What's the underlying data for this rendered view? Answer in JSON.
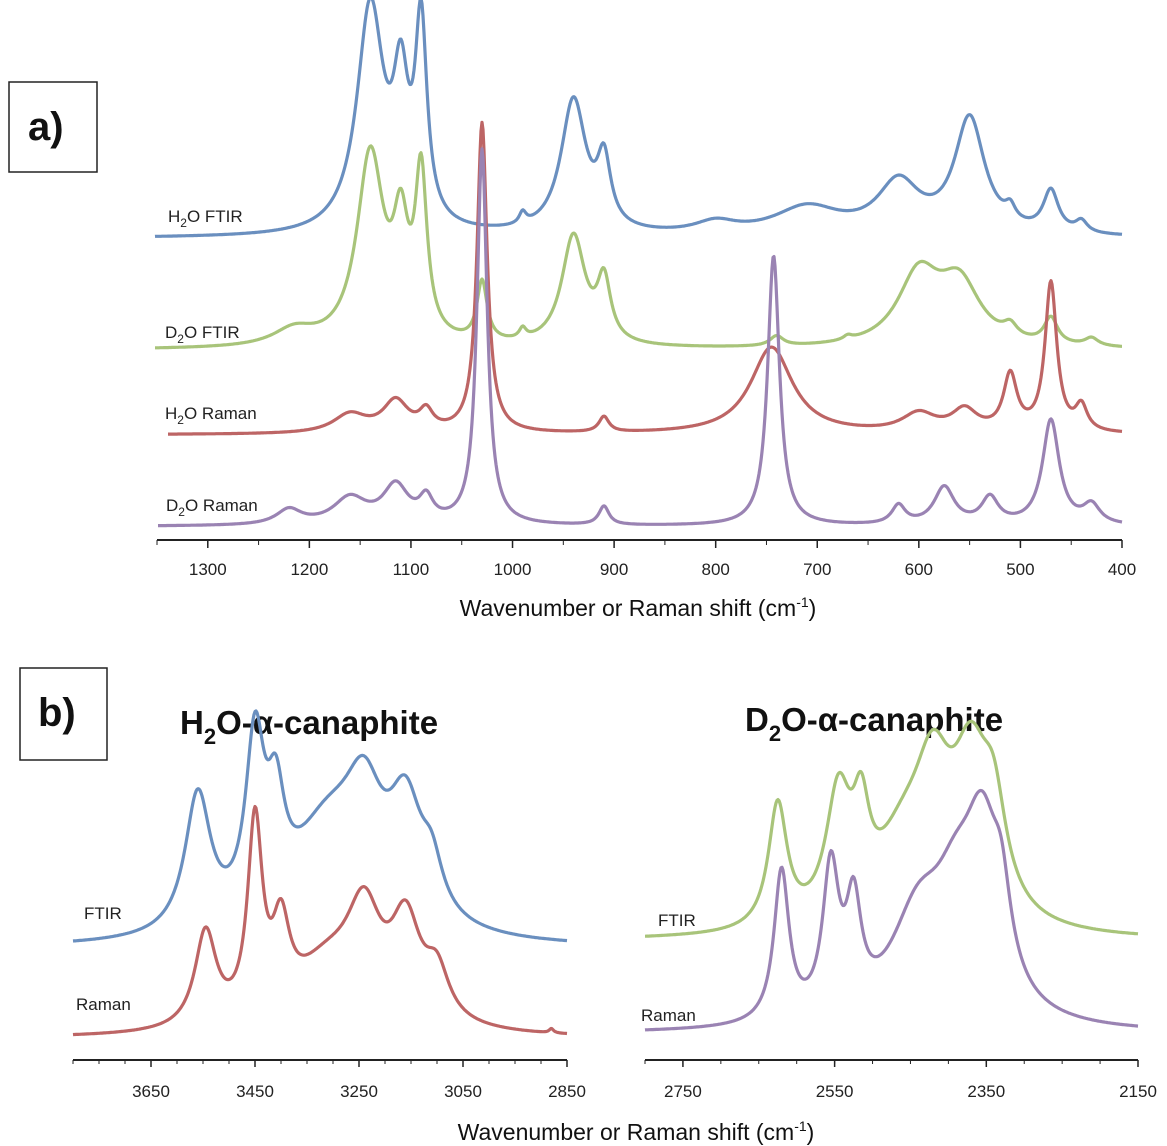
{
  "colors": {
    "blue": "#6a8fbf",
    "green": "#a8c47a",
    "red": "#bd6565",
    "purple": "#9a83b3"
  },
  "panel_a": {
    "tag": "a)",
    "axis_title": "Wavenumber or Raman shift (cm",
    "axis_unit_sup": "-1",
    "axis_title_close": ")",
    "trace_labels": {
      "h2o_ftir": {
        "pre": "H",
        "sub": "2",
        "post": "O FTIR"
      },
      "d2o_ftir": {
        "pre": "D",
        "sub": "2",
        "post": "O FTIR"
      },
      "h2o_raman": {
        "pre": "H",
        "sub": "2",
        "post": "O Raman"
      },
      "d2o_raman": {
        "pre": "D",
        "sub": "2",
        "post": "O Raman"
      }
    }
  },
  "panel_b": {
    "tag": "b)",
    "axis_title": "Wavenumber or Raman shift (cm",
    "axis_unit_sup": "-1",
    "axis_title_close": ")",
    "left_title": {
      "pre": "H",
      "sub": "2",
      "post": "O-α-canaphite"
    },
    "right_title": {
      "pre": "D",
      "sub": "2",
      "post": "O-α-canaphite"
    },
    "left_labels": {
      "ftir": "FTIR",
      "raman": "Raman"
    },
    "right_labels": {
      "ftir": "FTIR",
      "raman": "Raman"
    }
  },
  "chart_data": [
    {
      "type": "line",
      "panel": "a",
      "xlabel": "Wavenumber or Raman shift (cm-1)",
      "xlim": [
        1350,
        400
      ],
      "x_reversed": true,
      "xticks": [
        1300,
        1200,
        1100,
        1000,
        900,
        800,
        700,
        600,
        500,
        400
      ],
      "y_axis_shown": false,
      "series": [
        {
          "name": "H2O FTIR",
          "color": "blue",
          "baseline": 0.02,
          "peaks": [
            [
              1140,
              0.98,
              16
            ],
            [
              1110,
              0.55,
              9
            ],
            [
              1090,
              0.85,
              7
            ],
            [
              940,
              0.58,
              15
            ],
            [
              910,
              0.28,
              8
            ],
            [
              990,
              0.05,
              4
            ],
            [
              800,
              0.05,
              25
            ],
            [
              710,
              0.12,
              40
            ],
            [
              620,
              0.22,
              25
            ],
            [
              550,
              0.5,
              18
            ],
            [
              510,
              0.06,
              6
            ],
            [
              470,
              0.18,
              9
            ],
            [
              440,
              0.05,
              7
            ]
          ]
        },
        {
          "name": "D2O FTIR",
          "color": "green",
          "baseline": 0.02,
          "peaks": [
            [
              1140,
              0.95,
              16
            ],
            [
              1110,
              0.5,
              9
            ],
            [
              1090,
              0.8,
              7
            ],
            [
              1215,
              0.08,
              25
            ],
            [
              1030,
              0.3,
              6
            ],
            [
              990,
              0.05,
              4
            ],
            [
              940,
              0.55,
              14
            ],
            [
              910,
              0.3,
              8
            ],
            [
              740,
              0.05,
              8
            ],
            [
              670,
              0.02,
              5
            ],
            [
              600,
              0.35,
              25
            ],
            [
              560,
              0.3,
              25
            ],
            [
              510,
              0.06,
              8
            ],
            [
              470,
              0.13,
              8
            ],
            [
              430,
              0.04,
              8
            ]
          ]
        },
        {
          "name": "H2O Raman",
          "color": "red",
          "baseline": 0.02,
          "peaks": [
            [
              1030,
              1.0,
              6
            ],
            [
              1160,
              0.06,
              20
            ],
            [
              1115,
              0.1,
              15
            ],
            [
              1085,
              0.06,
              8
            ],
            [
              910,
              0.05,
              6
            ],
            [
              745,
              0.28,
              25
            ],
            [
              600,
              0.06,
              20
            ],
            [
              555,
              0.07,
              15
            ],
            [
              510,
              0.18,
              8
            ],
            [
              470,
              0.48,
              7
            ],
            [
              440,
              0.08,
              7
            ]
          ]
        },
        {
          "name": "D2O Raman",
          "color": "purple",
          "baseline": 0.02,
          "peaks": [
            [
              1030,
              1.0,
              6
            ],
            [
              1220,
              0.04,
              15
            ],
            [
              1160,
              0.07,
              20
            ],
            [
              1115,
              0.1,
              15
            ],
            [
              1085,
              0.06,
              8
            ],
            [
              910,
              0.05,
              6
            ],
            [
              743,
              0.72,
              7
            ],
            [
              620,
              0.05,
              8
            ],
            [
              575,
              0.1,
              12
            ],
            [
              530,
              0.07,
              10
            ],
            [
              470,
              0.28,
              10
            ],
            [
              430,
              0.05,
              10
            ]
          ]
        }
      ]
    },
    {
      "type": "line",
      "panel": "b-left",
      "title": "H2O-α-canaphite",
      "xlim": [
        3800,
        2850
      ],
      "x_reversed": true,
      "xticks": [
        3650,
        3450,
        3250,
        3050,
        2850
      ],
      "series": [
        {
          "name": "FTIR",
          "color": "blue",
          "baseline": 0.02,
          "peaks": [
            [
              3560,
              0.62,
              30
            ],
            [
              3450,
              0.78,
              22
            ],
            [
              3410,
              0.42,
              20
            ],
            [
              3310,
              0.48,
              90
            ],
            [
              3240,
              0.45,
              45
            ],
            [
              3160,
              0.5,
              40
            ],
            [
              3110,
              0.2,
              25
            ]
          ]
        },
        {
          "name": "Raman",
          "color": "red",
          "baseline": 0.02,
          "peaks": [
            [
              3545,
              0.45,
              25
            ],
            [
              3450,
              0.92,
              17
            ],
            [
              3400,
              0.38,
              20
            ],
            [
              3310,
              0.3,
              85
            ],
            [
              3240,
              0.45,
              40
            ],
            [
              3160,
              0.45,
              35
            ],
            [
              3100,
              0.22,
              28
            ],
            [
              2880,
              0.02,
              5
            ]
          ]
        }
      ]
    },
    {
      "type": "line",
      "panel": "b-right",
      "title": "D2O-α-canaphite",
      "xlim": [
        2800,
        2150
      ],
      "x_reversed": true,
      "xticks": [
        2750,
        2550,
        2350,
        2150
      ],
      "series": [
        {
          "name": "FTIR",
          "color": "green",
          "baseline": 0.02,
          "peaks": [
            [
              2625,
              0.6,
              15
            ],
            [
              2545,
              0.6,
              20
            ],
            [
              2515,
              0.4,
              13
            ],
            [
              2460,
              0.35,
              45
            ],
            [
              2420,
              0.6,
              30
            ],
            [
              2370,
              0.7,
              30
            ],
            [
              2340,
              0.42,
              20
            ]
          ]
        },
        {
          "name": "Raman",
          "color": "purple",
          "baseline": 0.02,
          "peaks": [
            [
              2620,
              0.75,
              12
            ],
            [
              2555,
              0.72,
              13
            ],
            [
              2525,
              0.5,
              12
            ],
            [
              2440,
              0.5,
              45
            ],
            [
              2390,
              0.45,
              35
            ],
            [
              2355,
              0.78,
              28
            ],
            [
              2330,
              0.35,
              15
            ]
          ]
        }
      ]
    }
  ]
}
